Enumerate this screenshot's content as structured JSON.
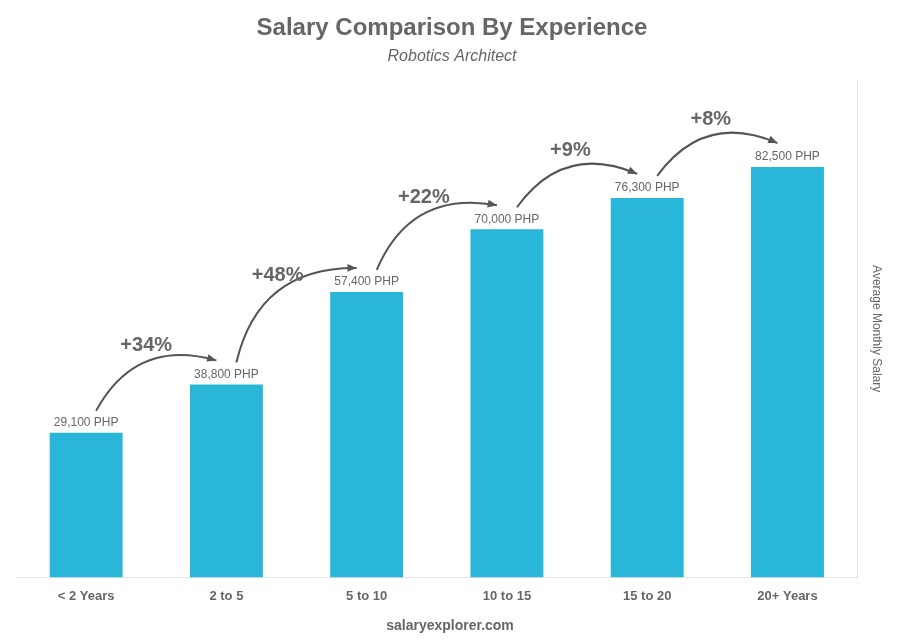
{
  "chart_data": {
    "type": "bar",
    "title": "Salary Comparison By Experience",
    "subtitle": "Robotics Architect",
    "ylabel": "Average Monthly Salary",
    "categories": [
      "< 2 Years",
      "2 to 5",
      "5 to 10",
      "10 to 15",
      "15 to 20",
      "20+ Years"
    ],
    "values": [
      29100,
      38800,
      57400,
      70000,
      76300,
      82500
    ],
    "value_labels": [
      "29,100 PHP",
      "38,800 PHP",
      "57,400 PHP",
      "70,000 PHP",
      "76,300 PHP",
      "82,500 PHP"
    ],
    "data_labels": true,
    "annotations": [
      "+34%",
      "+48%",
      "+22%",
      "+9%",
      "+8%"
    ],
    "footer": "salaryexplorer.com",
    "color": "#29B6D8",
    "ylim": [
      0,
      100000
    ],
    "grid": false,
    "tick_labels": "x"
  }
}
